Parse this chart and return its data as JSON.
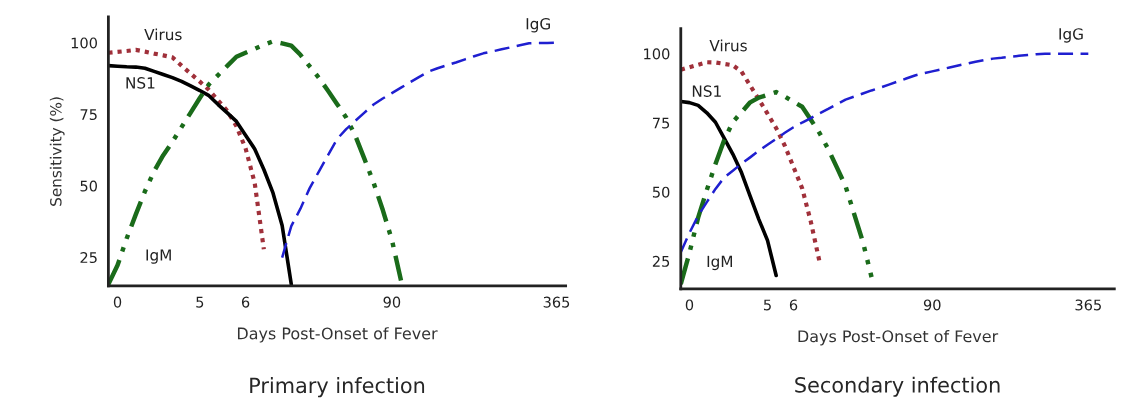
{
  "chart_data": [
    {
      "type": "line",
      "title": "Primary infection",
      "xlabel": "Days Post-Onset of Fever",
      "ylabel": "Sensitivity (%)",
      "categories": [
        null,
        "0",
        null,
        null,
        null,
        null,
        null,
        null,
        null,
        null,
        "5",
        null,
        null,
        null,
        null,
        "6",
        null,
        null,
        null,
        null,
        null,
        null,
        null,
        null,
        null,
        null,
        null,
        null,
        null,
        null,
        null,
        "90",
        null,
        null,
        null,
        null,
        null,
        null,
        null,
        null,
        null,
        null,
        null,
        null,
        null,
        null,
        null,
        null,
        null,
        "365",
        null
      ],
      "ylim": [
        15,
        109
      ],
      "yticks": [
        25,
        50,
        75,
        100
      ],
      "grid": false,
      "legend": false,
      "series": [
        {
          "name": "Virus",
          "color": "#a0303a",
          "line_style": "dotted",
          "values": [
            96.5,
            96.8,
            97.1,
            97.5,
            96.9,
            96.2,
            95.6,
            94.9,
            92,
            89.2,
            86.4,
            83.5,
            79.8,
            76.2,
            70.8,
            63.1,
            51,
            27.8,
            null,
            null,
            null,
            null,
            null,
            null,
            null,
            null,
            null,
            null,
            null,
            null,
            null,
            null,
            null,
            null,
            null,
            null,
            null,
            null,
            null,
            null,
            null,
            null,
            null,
            null,
            null,
            null,
            null,
            null,
            null,
            null,
            null
          ]
        },
        {
          "name": "NS1",
          "color": "#000000",
          "line_style": "solid",
          "values": [
            92,
            91.8,
            91.6,
            91.5,
            91.1,
            90,
            88.9,
            87.8,
            86.5,
            84.9,
            83.3,
            81.5,
            78.4,
            75.5,
            72.5,
            67.7,
            62.9,
            55.7,
            47.5,
            36.1,
            15.6,
            null,
            null,
            null,
            null,
            null,
            null,
            null,
            null,
            null,
            null,
            null,
            null,
            null,
            null,
            null,
            null,
            null,
            null,
            null,
            null,
            null,
            null,
            null,
            null,
            null,
            null,
            null,
            null,
            null,
            null
          ]
        },
        {
          "name": "IgM",
          "color": "#1a6b1a",
          "line_style": "dashdot",
          "values": [
            15.6,
            22.2,
            31.6,
            40,
            48.1,
            55.1,
            60.7,
            65.4,
            70.5,
            75.6,
            80.7,
            85.5,
            88.7,
            91.9,
            95.1,
            96.5,
            97.9,
            99.3,
            100.5,
            99.8,
            99,
            95.8,
            91.8,
            87.8,
            83.3,
            78.6,
            73.9,
            67.5,
            59.4,
            51.1,
            41.6,
            31.1,
            16.9,
            null,
            null,
            null,
            null,
            null,
            null,
            null,
            null,
            null,
            null,
            null,
            null,
            null,
            null,
            null,
            null,
            null,
            null
          ]
        },
        {
          "name": "IgG",
          "color": "#1f1fd0",
          "line_style": "dashed",
          "values": [
            null,
            null,
            null,
            null,
            null,
            null,
            null,
            null,
            null,
            null,
            null,
            null,
            null,
            null,
            null,
            null,
            null,
            null,
            null,
            24.9,
            35.9,
            42,
            49.1,
            54.9,
            60.6,
            66.3,
            69.8,
            72.7,
            75.6,
            78.4,
            80.5,
            82.4,
            84.3,
            86.2,
            88.1,
            89.9,
            91.1,
            92.1,
            93.1,
            94.2,
            95.3,
            96.3,
            97,
            97.7,
            98.4,
            99.1,
            99.8,
            99.9,
            99.9,
            100,
            null
          ]
        }
      ]
    },
    {
      "type": "line",
      "title": "Secondary infection",
      "xlabel": "Days Post-Onset of Fever",
      "categories": [
        null,
        "0",
        null,
        null,
        null,
        null,
        null,
        null,
        null,
        null,
        "5",
        null,
        null,
        "6",
        null,
        null,
        null,
        null,
        null,
        null,
        null,
        null,
        null,
        null,
        null,
        null,
        null,
        null,
        null,
        "90",
        null,
        null,
        null,
        null,
        null,
        null,
        null,
        null,
        null,
        null,
        null,
        null,
        null,
        null,
        null,
        null,
        null,
        "365",
        null,
        null,
        null
      ],
      "ylim": [
        15,
        109
      ],
      "yticks": [
        25,
        50,
        75,
        100
      ],
      "grid": false,
      "legend": false,
      "series": [
        {
          "name": "Virus",
          "color": "#a0303a",
          "line_style": "dotted",
          "values": [
            94.2,
            95.1,
            96,
            96.9,
            96.8,
            96.3,
            95.8,
            93.5,
            88.5,
            83.5,
            78.3,
            73.1,
            66.7,
            59,
            51.3,
            39.2,
            24.8,
            null,
            null,
            null,
            null,
            null,
            null,
            null,
            null,
            null,
            null,
            null,
            null,
            null,
            null,
            null,
            null,
            null,
            null,
            null,
            null,
            null,
            null,
            null,
            null,
            null,
            null,
            null,
            null,
            null,
            null,
            null,
            null,
            null,
            null
          ]
        },
        {
          "name": "NS1",
          "color": "#000000",
          "line_style": "solid",
          "values": [
            82.7,
            82.3,
            81.3,
            78.6,
            75.2,
            69.5,
            63.7,
            57,
            48.5,
            40.1,
            32.5,
            19.8,
            null,
            null,
            null,
            null,
            null,
            null,
            null,
            null,
            null,
            null,
            null,
            null,
            null,
            null,
            null,
            null,
            null,
            null,
            null,
            null,
            null,
            null,
            null,
            null,
            null,
            null,
            null,
            null,
            null,
            null,
            null,
            null,
            null,
            null,
            null,
            null,
            null,
            null,
            null
          ]
        },
        {
          "name": "IgM",
          "color": "#1a6b1a",
          "line_style": "dashdot",
          "values": [
            16.7,
            28,
            40.7,
            50.7,
            60.1,
            68.7,
            75.3,
            78.8,
            82.4,
            84.1,
            85.1,
            86.1,
            84.5,
            82.6,
            80.8,
            76.1,
            71.3,
            65.5,
            58.9,
            52.1,
            42,
            32,
            19.2,
            null,
            null,
            null,
            null,
            null,
            null,
            null,
            null,
            null,
            null,
            null,
            null,
            null,
            null,
            null,
            null,
            null,
            null,
            null,
            null,
            null,
            null,
            null,
            null,
            null,
            null,
            null,
            null
          ]
        },
        {
          "name": "IgG",
          "color": "#1f1fd0",
          "line_style": "dashed",
          "values": [
            28.2,
            35.2,
            41.4,
            46.3,
            51.1,
            55.2,
            57.7,
            60.2,
            62.5,
            64.9,
            67.1,
            69.2,
            71.4,
            73.4,
            75.1,
            76.7,
            78.4,
            80,
            81.7,
            83.4,
            84.5,
            85.6,
            86.7,
            87.7,
            88.8,
            89.9,
            91,
            92.1,
            92.9,
            93.6,
            94.3,
            95,
            95.7,
            96.4,
            97.1,
            97.7,
            98.2,
            98.5,
            98.9,
            99.2,
            99.5,
            99.8,
            100,
            100,
            100,
            100,
            100,
            100,
            null,
            null,
            null
          ]
        }
      ]
    }
  ]
}
